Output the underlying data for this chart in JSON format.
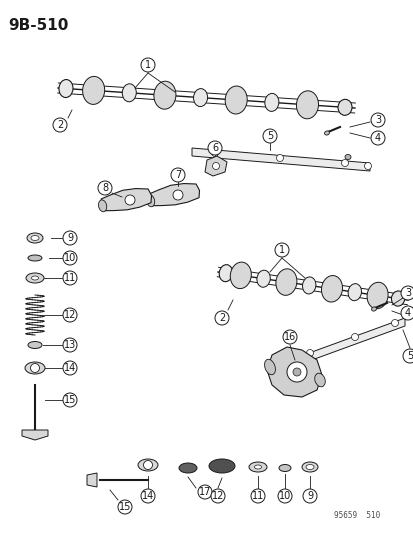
{
  "title": "9B-510",
  "footer": "95659  510",
  "bg_color": "#ffffff",
  "line_color": "#1a1a1a",
  "title_fontsize": 11,
  "label_fontsize": 7.5,
  "fig_width": 4.14,
  "fig_height": 5.33,
  "dpi": 100
}
